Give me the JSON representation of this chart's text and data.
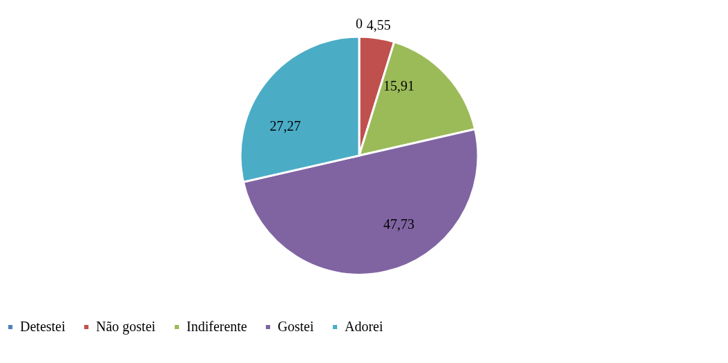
{
  "chart_data": {
    "type": "pie",
    "categories": [
      "Detestei",
      "Não gostei",
      "Indiferente",
      "Gostei",
      "Adorei"
    ],
    "values": [
      0,
      4.55,
      15.91,
      47.73,
      27.27
    ],
    "value_labels": [
      "0",
      "4,55",
      "15,91",
      "47,73",
      "27,27"
    ],
    "colors": [
      "#4f81bd",
      "#c0504d",
      "#9bbb59",
      "#8064a2",
      "#4bacc6"
    ],
    "legend": "bottom"
  }
}
